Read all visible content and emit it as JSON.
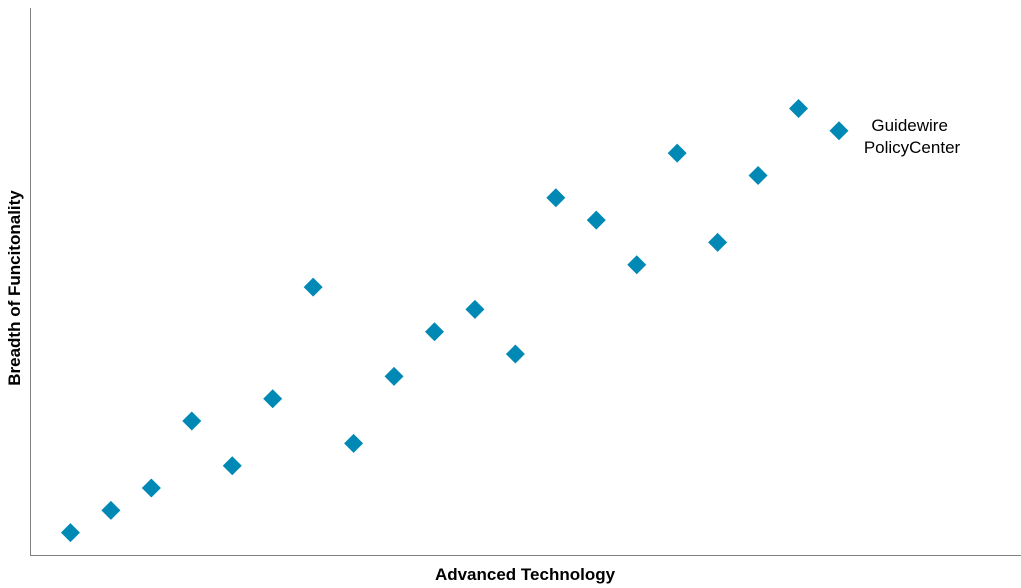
{
  "chart_data": {
    "type": "scatter",
    "title": "",
    "xlabel": "Advanced Technology",
    "ylabel": "Breadth of Funcitonality",
    "xlim": [
      0,
      24.5
    ],
    "ylim": [
      0,
      24.5
    ],
    "grid": false,
    "legend": "none",
    "marker": "diamond",
    "marker_color": "#0089B5",
    "series": [
      {
        "points": [
          {
            "x": 1,
            "y": 1
          },
          {
            "x": 2,
            "y": 2
          },
          {
            "x": 3,
            "y": 3
          },
          {
            "x": 4,
            "y": 6
          },
          {
            "x": 5,
            "y": 4
          },
          {
            "x": 6,
            "y": 7
          },
          {
            "x": 7,
            "y": 12
          },
          {
            "x": 8,
            "y": 5
          },
          {
            "x": 9,
            "y": 8
          },
          {
            "x": 10,
            "y": 10
          },
          {
            "x": 11,
            "y": 11
          },
          {
            "x": 12,
            "y": 9
          },
          {
            "x": 13,
            "y": 16
          },
          {
            "x": 14,
            "y": 15
          },
          {
            "x": 15,
            "y": 13
          },
          {
            "x": 16,
            "y": 18
          },
          {
            "x": 17,
            "y": 14
          },
          {
            "x": 18,
            "y": 17
          },
          {
            "x": 19,
            "y": 20
          },
          {
            "x": 20,
            "y": 19
          }
        ]
      }
    ],
    "annotations": [
      {
        "lines": [
          "Guidewire",
          "PolicyCenter"
        ],
        "x": 20,
        "y": 19
      }
    ]
  }
}
